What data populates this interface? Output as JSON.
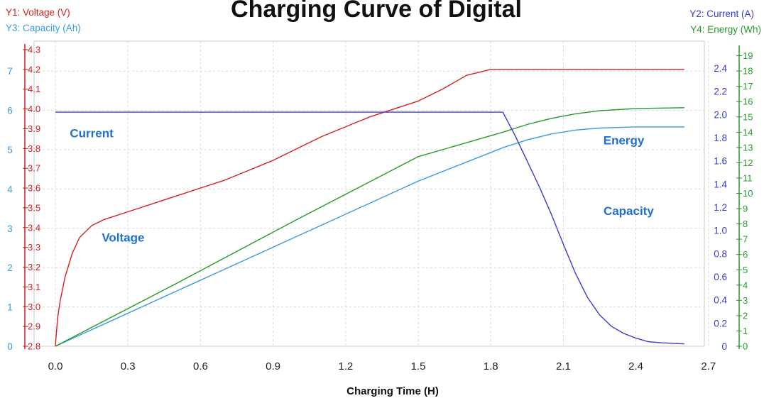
{
  "chart_data": {
    "type": "line",
    "title": "Charging Curve of Digital",
    "xlabel": "Charging Time (H)",
    "xlim": [
      -0.1,
      2.7
    ],
    "x_ticks": [
      "0.0",
      "0.3",
      "0.6",
      "0.9",
      "1.2",
      "1.5",
      "1.8",
      "2.1",
      "2.4",
      "2.7"
    ],
    "grid": true,
    "axes": {
      "y1": {
        "label": "Y1: Voltage (V)",
        "color": "#d42020",
        "range": [
          2.8,
          4.3
        ],
        "ticks": [
          "2.8",
          "2.9",
          "3.0",
          "3.1",
          "3.2",
          "3.3",
          "3.4",
          "3.5",
          "3.6",
          "3.7",
          "3.8",
          "3.9",
          "4.0",
          "4.1",
          "4.2",
          "4.3"
        ]
      },
      "y2": {
        "label": "Y2: Current (A)",
        "color": "#3a3ad0",
        "range": [
          0,
          2.55
        ],
        "ticks": [
          "0",
          "0.2",
          "0.4",
          "0.6",
          "0.8",
          "1.0",
          "1.2",
          "1.4",
          "1.6",
          "1.8",
          "2.0",
          "2.2",
          "2.4"
        ]
      },
      "y3": {
        "label": "Y3: Capacity (Ah)",
        "color": "#3c9ce0",
        "range": [
          0,
          7.6
        ],
        "ticks": [
          "0",
          "1",
          "2",
          "3",
          "4",
          "5",
          "6",
          "7"
        ]
      },
      "y4": {
        "label": "Y4: Energy (Wh)",
        "color": "#2a9a2a",
        "range": [
          0,
          19.4
        ],
        "ticks": [
          "0",
          "1",
          "2",
          "3",
          "4",
          "5",
          "6",
          "7",
          "8",
          "9",
          "10",
          "11",
          "12",
          "13",
          "14",
          "15",
          "16",
          "17",
          "18",
          "19"
        ]
      }
    },
    "annotations": [
      {
        "text": "Current",
        "x": 0.15,
        "y2": 1.84
      },
      {
        "text": "Voltage",
        "x": 0.28,
        "y2": 0.94
      },
      {
        "text": "Energy",
        "x": 2.35,
        "y2": 1.78
      },
      {
        "text": "Capacity",
        "x": 2.37,
        "y2": 1.17
      }
    ],
    "annotation_color": "#1f6fd0",
    "series": [
      {
        "name": "Voltage",
        "axis": "y1",
        "color": "#d42020",
        "points": [
          [
            0,
            2.8
          ],
          [
            0.005,
            2.88
          ],
          [
            0.01,
            2.95
          ],
          [
            0.02,
            3.03
          ],
          [
            0.04,
            3.15
          ],
          [
            0.07,
            3.27
          ],
          [
            0.1,
            3.35
          ],
          [
            0.15,
            3.41
          ],
          [
            0.2,
            3.44
          ],
          [
            0.3,
            3.48
          ],
          [
            0.4,
            3.52
          ],
          [
            0.5,
            3.56
          ],
          [
            0.6,
            3.6
          ],
          [
            0.7,
            3.64
          ],
          [
            0.8,
            3.69
          ],
          [
            0.9,
            3.74
          ],
          [
            1.0,
            3.8
          ],
          [
            1.1,
            3.86
          ],
          [
            1.2,
            3.91
          ],
          [
            1.3,
            3.96
          ],
          [
            1.4,
            4.0
          ],
          [
            1.5,
            4.04
          ],
          [
            1.6,
            4.1
          ],
          [
            1.7,
            4.17
          ],
          [
            1.8,
            4.2
          ],
          [
            2.0,
            4.2
          ],
          [
            2.2,
            4.2
          ],
          [
            2.4,
            4.2
          ],
          [
            2.6,
            4.2
          ]
        ]
      },
      {
        "name": "Current",
        "axis": "y2",
        "color": "#3a3ad0",
        "points": [
          [
            0,
            2.02
          ],
          [
            1.85,
            2.02
          ],
          [
            1.9,
            1.82
          ],
          [
            1.95,
            1.6
          ],
          [
            2.0,
            1.38
          ],
          [
            2.05,
            1.14
          ],
          [
            2.1,
            0.88
          ],
          [
            2.15,
            0.63
          ],
          [
            2.2,
            0.42
          ],
          [
            2.25,
            0.27
          ],
          [
            2.3,
            0.17
          ],
          [
            2.35,
            0.11
          ],
          [
            2.4,
            0.07
          ],
          [
            2.45,
            0.04
          ],
          [
            2.5,
            0.03
          ],
          [
            2.6,
            0.02
          ]
        ]
      },
      {
        "name": "Capacity",
        "axis": "y3",
        "color": "#3c9ce0",
        "points": [
          [
            0,
            0
          ],
          [
            0.5,
            1.4
          ],
          [
            1.0,
            2.8
          ],
          [
            1.5,
            4.2
          ],
          [
            1.85,
            5.05
          ],
          [
            1.95,
            5.25
          ],
          [
            2.05,
            5.4
          ],
          [
            2.15,
            5.5
          ],
          [
            2.25,
            5.55
          ],
          [
            2.4,
            5.58
          ],
          [
            2.6,
            5.58
          ]
        ]
      },
      {
        "name": "Energy",
        "axis": "y4",
        "color": "#2a9a2a",
        "points": [
          [
            0,
            0
          ],
          [
            0.5,
            4.1
          ],
          [
            1.0,
            8.3
          ],
          [
            1.5,
            12.4
          ],
          [
            1.85,
            14.0
          ],
          [
            1.95,
            14.5
          ],
          [
            2.05,
            14.9
          ],
          [
            2.15,
            15.2
          ],
          [
            2.25,
            15.4
          ],
          [
            2.4,
            15.55
          ],
          [
            2.6,
            15.6
          ]
        ]
      }
    ]
  }
}
